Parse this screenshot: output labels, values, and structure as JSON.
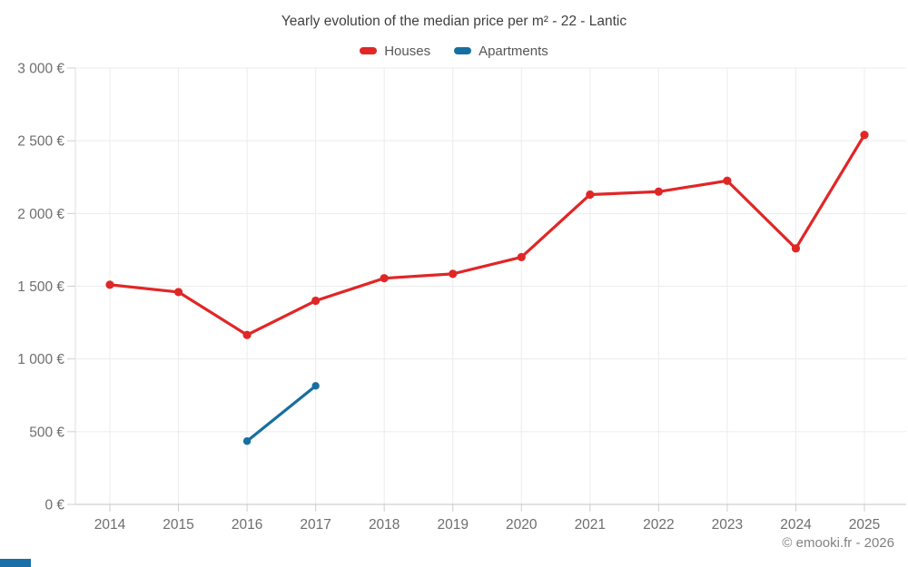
{
  "title": "Yearly evolution of the median price per m² - 22 - Lantic",
  "footer": "© emooki.fr - 2026",
  "colors": {
    "houses": "#e12626",
    "apartments": "#176f9f",
    "grid": "#ececec",
    "left_border": "#dcdcdc",
    "axis_line": "#c6c6c6",
    "tick": "#cfcfcf",
    "title_text": "#3f3f3f",
    "legend_text": "#565656",
    "axis_text": "#6e6e6e",
    "footer_text": "#828282",
    "watermark": "#1a6fa8"
  },
  "legend": [
    {
      "label": "Houses"
    },
    {
      "label": "Apartments"
    }
  ],
  "chart_data": {
    "type": "line",
    "title": "Yearly evolution of the median price per m² - 22 - Lantic",
    "x": [
      "2014",
      "2015",
      "2016",
      "2017",
      "2018",
      "2019",
      "2020",
      "2021",
      "2022",
      "2023",
      "2024",
      "2025"
    ],
    "series": [
      {
        "name": "Houses",
        "color": "#e12626",
        "values": [
          1510,
          1460,
          1165,
          1400,
          1555,
          1585,
          1700,
          2130,
          2150,
          2225,
          1760,
          2540
        ]
      },
      {
        "name": "Apartments",
        "color": "#176f9f",
        "values": [
          null,
          null,
          435,
          815,
          null,
          null,
          null,
          null,
          null,
          null,
          null,
          null
        ]
      }
    ],
    "ylim": [
      0,
      3000
    ],
    "yticks": [
      {
        "value": 0,
        "label": "0 €"
      },
      {
        "value": 500,
        "label": "500 €"
      },
      {
        "value": 1000,
        "label": "1 000 €"
      },
      {
        "value": 1500,
        "label": "1 500 €"
      },
      {
        "value": 2000,
        "label": "2 000 €"
      },
      {
        "value": 2500,
        "label": "2 500 €"
      },
      {
        "value": 3000,
        "label": "3 000 €"
      }
    ],
    "xlabel": "",
    "ylabel": "",
    "grid": true,
    "legend_position": "top"
  }
}
